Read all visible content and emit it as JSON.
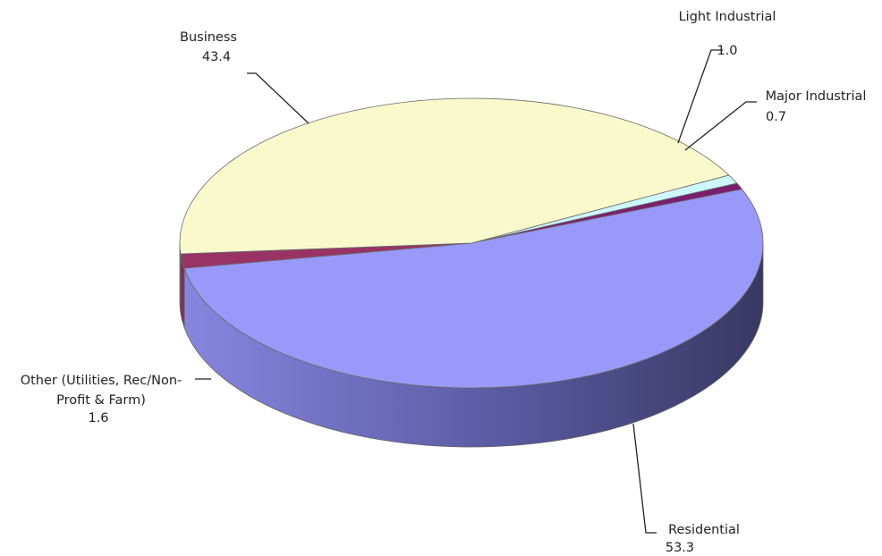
{
  "chart_data": {
    "type": "pie",
    "title": "",
    "style": "3d",
    "slices": [
      {
        "label": "Light Industrial",
        "value": 1.0,
        "color": "#ccf7ff"
      },
      {
        "label": "Major Industrial",
        "value": 0.7,
        "color": "#7a1f6e"
      },
      {
        "label": "Residential",
        "value": 53.3,
        "color": "#9999f9"
      },
      {
        "label": "Other (Utilities, Rec/Non-Profit & Farm)",
        "value": 1.6,
        "color": "#993366"
      },
      {
        "label": "Business",
        "value": 43.4,
        "color": "#f9f9cc"
      }
    ]
  },
  "labels": {
    "light_industrial": {
      "line1": "Light Industrial",
      "value": "1.0"
    },
    "major_industrial": {
      "line1": "Major Industrial",
      "value": "0.7"
    },
    "residential": {
      "line1": "Residential",
      "value": "53.3"
    },
    "other": {
      "line1": "Other (Utilities, Rec/Non-",
      "line2": "Profit & Farm)",
      "value": "1.6"
    },
    "business": {
      "line1": "Business",
      "value": "43.4"
    }
  }
}
